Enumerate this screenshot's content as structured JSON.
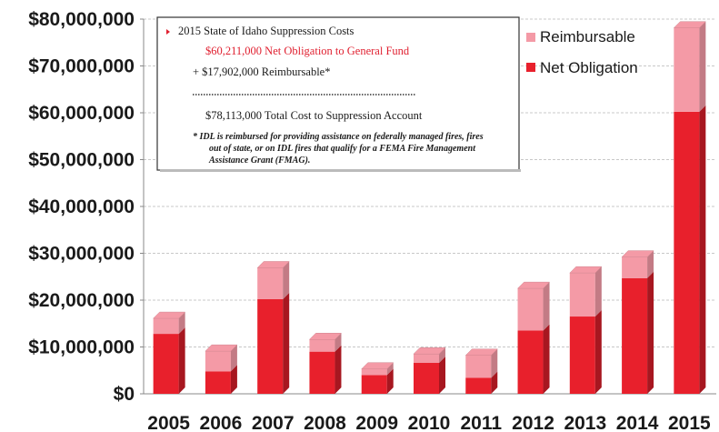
{
  "chart_data": {
    "type": "bar",
    "stacked": true,
    "categories": [
      "2005",
      "2006",
      "2007",
      "2008",
      "2009",
      "2010",
      "2011",
      "2012",
      "2013",
      "2014",
      "2015"
    ],
    "series": [
      {
        "name": "Net Obligation",
        "color": "#e8202c",
        "values": [
          12800000,
          4800000,
          20200000,
          9000000,
          4000000,
          6600000,
          3400000,
          13500000,
          16500000,
          24700000,
          60211000
        ]
      },
      {
        "name": "Reimbursable",
        "color": "#f49aa6",
        "values": [
          3300000,
          4300000,
          6700000,
          2600000,
          1300000,
          1900000,
          4800000,
          9000000,
          9300000,
          4500000,
          17902000
        ]
      }
    ],
    "ylim": [
      0,
      80000000
    ],
    "y_ticks": [
      "$0",
      "$10,000,000",
      "$20,000,000",
      "$30,000,000",
      "$40,000,000",
      "$50,000,000",
      "$60,000,000",
      "$70,000,000",
      "$80,000,000"
    ],
    "y_tick_values": [
      0,
      10000000,
      20000000,
      30000000,
      40000000,
      50000000,
      60000000,
      70000000,
      80000000
    ],
    "grid": true,
    "legend": {
      "placement": "top-right",
      "entries": [
        {
          "label": "Reimbursable",
          "color": "#f49aa6"
        },
        {
          "label": "Net Obligation",
          "color": "#e8202c"
        }
      ]
    },
    "annotation": {
      "title": "2015 State of Idaho Suppression Costs",
      "net_line": "$60,211,000 Net Obligation to General Fund",
      "reimb_line": "+ $17,902,000 Reimbursable*",
      "total_line": "$78,113,000 Total Cost to Suppression Account",
      "footnote": [
        "* IDL is reimbursed for providing assistance on federally managed fires, fires",
        "out of state, or on IDL fires that qualify for a FEMA Fire Management",
        "Assistance Grant (FMAG)."
      ]
    }
  }
}
